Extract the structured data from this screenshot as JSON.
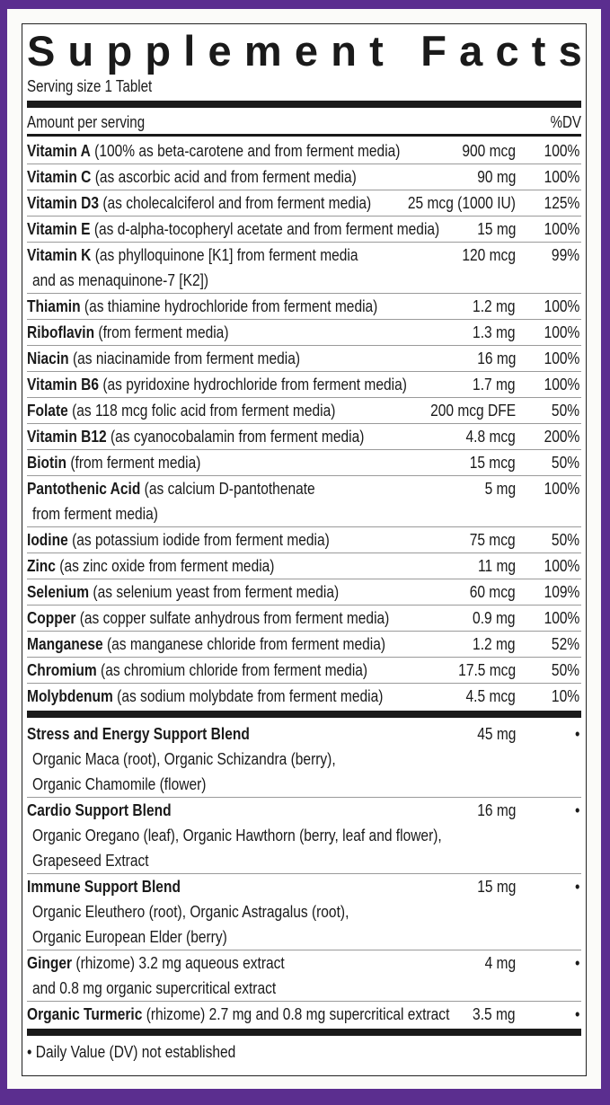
{
  "title": "Supplement Facts",
  "serving_size": "Serving size 1 Tablet",
  "header": {
    "amount": "Amount per serving",
    "dv": "%DV"
  },
  "nutrients": [
    {
      "name": "Vitamin A",
      "desc": " (100% as beta-carotene and from ferment media)",
      "amount": "900 mcg",
      "dv": "100%"
    },
    {
      "name": "Vitamin C",
      "desc": " (as ascorbic acid and from ferment media)",
      "amount": "90 mg",
      "dv": "100%"
    },
    {
      "name": "Vitamin D3",
      "desc": " (as cholecalciferol and from ferment media)",
      "amount": "25 mcg (1000 IU)",
      "dv": "125%"
    },
    {
      "name": "Vitamin E",
      "desc": " (as d-alpha-tocopheryl acetate and from ferment media)",
      "amount": "15 mg",
      "dv": "100%"
    },
    {
      "name": "Vitamin K",
      "desc": " (as phylloquinone [K1] from ferment media",
      "desc2": "and as menaquinone-7 [K2])",
      "amount": "120 mcg",
      "dv": "99%"
    },
    {
      "name": "Thiamin",
      "desc": " (as thiamine hydrochloride from ferment media)",
      "amount": "1.2 mg",
      "dv": "100%"
    },
    {
      "name": "Riboflavin",
      "desc": " (from ferment media)",
      "amount": "1.3 mg",
      "dv": "100%"
    },
    {
      "name": "Niacin",
      "desc": " (as niacinamide from ferment media)",
      "amount": "16 mg",
      "dv": "100%"
    },
    {
      "name": "Vitamin B6",
      "desc": " (as pyridoxine hydrochloride from ferment media)",
      "amount": "1.7 mg",
      "dv": "100%"
    },
    {
      "name": "Folate",
      "desc": " (as 118 mcg folic acid from ferment media)",
      "amount": "200 mcg DFE",
      "dv": "50%"
    },
    {
      "name": "Vitamin B12",
      "desc": " (as cyanocobalamin from ferment media)",
      "amount": "4.8 mcg",
      "dv": "200%"
    },
    {
      "name": "Biotin",
      "desc": " (from ferment media)",
      "amount": "15 mcg",
      "dv": "50%"
    },
    {
      "name": "Pantothenic Acid",
      "desc": " (as calcium D-pantothenate",
      "desc2": "from ferment media)",
      "amount": "5 mg",
      "dv": "100%"
    },
    {
      "name": "Iodine",
      "desc": " (as potassium iodide from ferment media)",
      "amount": "75 mcg",
      "dv": "50%"
    },
    {
      "name": "Zinc",
      "desc": " (as zinc oxide from ferment media)",
      "amount": "11 mg",
      "dv": "100%"
    },
    {
      "name": "Selenium",
      "desc": " (as selenium yeast from ferment media)",
      "amount": "60 mcg",
      "dv": "109%"
    },
    {
      "name": "Copper",
      "desc": " (as copper sulfate anhydrous from ferment media)",
      "amount": "0.9 mg",
      "dv": "100%"
    },
    {
      "name": "Manganese",
      "desc": " (as manganese chloride from ferment media)",
      "amount": "1.2 mg",
      "dv": "52%"
    },
    {
      "name": "Chromium",
      "desc": " (as chromium chloride from ferment media)",
      "amount": "17.5 mcg",
      "dv": "50%"
    },
    {
      "name": "Molybdenum",
      "desc": " (as sodium molybdate from ferment media)",
      "amount": "4.5 mcg",
      "dv": "10%"
    }
  ],
  "blends": [
    {
      "name": "Stress and Energy Support Blend",
      "desc": "",
      "desc2": "Organic Maca (root), Organic Schizandra (berry),",
      "desc3": "Organic Chamomile (flower)",
      "amount": "45 mg",
      "dv": "•"
    },
    {
      "name": "Cardio Support Blend",
      "desc": "",
      "desc2": "Organic Oregano (leaf), Organic Hawthorn (berry, leaf and flower),",
      "desc3": "Grapeseed Extract",
      "amount": "16 mg",
      "dv": "•"
    },
    {
      "name": "Immune Support Blend",
      "desc": "",
      "desc2": "Organic Eleuthero (root), Organic Astragalus (root),",
      "desc3": "Organic European Elder (berry)",
      "amount": "15 mg",
      "dv": "•"
    },
    {
      "name": "Ginger",
      "desc": " (rhizome) 3.2 mg aqueous extract",
      "desc2": "and 0.8 mg organic supercritical extract",
      "amount": "4 mg",
      "dv": "•"
    },
    {
      "name": "Organic Turmeric",
      "desc": " (rhizome) 2.7 mg and 0.8 mg supercritical extract",
      "amount": "3.5 mg",
      "dv": "•"
    }
  ],
  "footnote": "• Daily Value (DV) not established",
  "colors": {
    "frame": "#5b2e8f",
    "text": "#1a1a1a"
  }
}
